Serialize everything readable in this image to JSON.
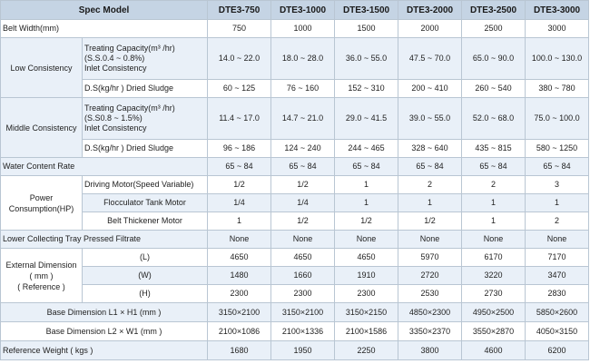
{
  "header": {
    "spec_label": "Spec Model",
    "models": [
      "DTE3-750",
      "DTE3-1000",
      "DTE3-1500",
      "DTE3-2000",
      "DTE3-2500",
      "DTE3-3000"
    ]
  },
  "belt_width": {
    "label": "Belt Width(mm)",
    "values": [
      "750",
      "1000",
      "1500",
      "2000",
      "2500",
      "3000"
    ]
  },
  "low": {
    "group_label": "Low Consistency",
    "cap_line1": "Treating Capacity(m³ /hr)",
    "cap_line2": "(S.S.0.4 ~ 0.8%)",
    "cap_line3": "Inlet Consistency",
    "cap_values": [
      "14.0 ~ 22.0",
      "18.0 ~ 28.0",
      "36.0 ~ 55.0",
      "47.5 ~ 70.0",
      "65.0 ~ 90.0",
      "100.0 ~ 130.0"
    ],
    "ds_label": "D.S(kg/hr ) Dried Sludge",
    "ds_values": [
      "60 ~ 125",
      "76 ~ 160",
      "152 ~ 310",
      "200 ~ 410",
      "260 ~ 540",
      "380 ~ 780"
    ]
  },
  "middle": {
    "group_label": "Middle Consistency",
    "cap_line1": "Treating Capacity(m³ /hr)",
    "cap_line2": "(S.S0.8 ~ 1.5%)",
    "cap_line3": "Inlet Consistency",
    "cap_values": [
      "11.4 ~ 17.0",
      "14.7 ~ 21.0",
      "29.0 ~ 41.5",
      "39.0 ~ 55.0",
      "52.0 ~ 68.0",
      "75.0 ~ 100.0"
    ],
    "ds_label": "D.S(kg/hr ) Dried Sludge",
    "ds_values": [
      "96 ~ 186",
      "124 ~ 240",
      "244 ~ 465",
      "328 ~ 640",
      "435 ~ 815",
      "580 ~ 1250"
    ]
  },
  "water": {
    "label": "Water Content Rate",
    "values": [
      "65 ~ 84",
      "65 ~ 84",
      "65 ~ 84",
      "65 ~ 84",
      "65 ~ 84",
      "65 ~ 84"
    ]
  },
  "power": {
    "group_line1": "Power",
    "group_line2": "Consumption(HP)",
    "rows": [
      {
        "label": "Driving Motor(Speed Variable)",
        "values": [
          "1/2",
          "1/2",
          "1",
          "2",
          "2",
          "3"
        ]
      },
      {
        "label": "Flocculator Tank Motor",
        "values": [
          "1/4",
          "1/4",
          "1",
          "1",
          "1",
          "1"
        ]
      },
      {
        "label": "Belt Thickener Motor",
        "values": [
          "1",
          "1/2",
          "1/2",
          "1/2",
          "1",
          "2"
        ]
      }
    ]
  },
  "filtrate": {
    "label": "Lower Collecting Tray Pressed Filtrate",
    "values": [
      "None",
      "None",
      "None",
      "None",
      "None",
      "None"
    ]
  },
  "external": {
    "group_line1": "External Dimension",
    "group_line2": "( mm )",
    "group_line3": "( Reference )",
    "rows": [
      {
        "label": "(L)",
        "values": [
          "4650",
          "4650",
          "4650",
          "5970",
          "6170",
          "7170"
        ]
      },
      {
        "label": "(W)",
        "values": [
          "1480",
          "1660",
          "1910",
          "2720",
          "3220",
          "3470"
        ]
      },
      {
        "label": "(H)",
        "values": [
          "2300",
          "2300",
          "2300",
          "2530",
          "2730",
          "2830"
        ]
      }
    ]
  },
  "base1": {
    "label": "Base Dimension L1 × H1 (mm )",
    "values": [
      "3150×2100",
      "3150×2100",
      "3150×2150",
      "4850×2300",
      "4950×2500",
      "5850×2600"
    ]
  },
  "base2": {
    "label": "Base Dimension L2 × W1 (mm )",
    "values": [
      "2100×1086",
      "2100×1336",
      "2100×1586",
      "3350×2370",
      "3550×2870",
      "4050×3150"
    ]
  },
  "weight": {
    "label": "Reference Weight ( kgs )",
    "values": [
      "1680",
      "1950",
      "2250",
      "3800",
      "4600",
      "6200"
    ]
  }
}
